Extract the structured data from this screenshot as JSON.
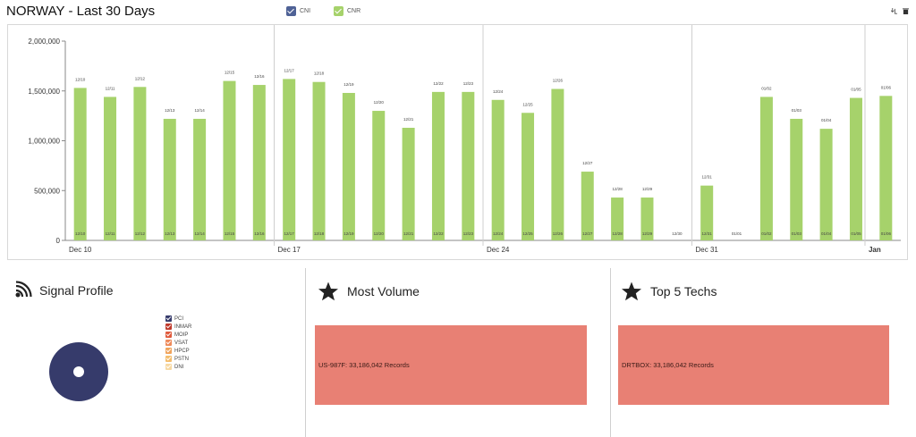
{
  "header": {
    "title": "NORWAY - Last 30 Days",
    "legend": [
      {
        "label": "CNI",
        "color": "#4f6296"
      },
      {
        "label": "CNR",
        "color": "#a6d26b"
      }
    ]
  },
  "chart_data": {
    "type": "bar",
    "title": "",
    "xlabel": "",
    "ylabel": "",
    "ylim": [
      0,
      2000000
    ],
    "y_ticks": [
      "0",
      "500,000",
      "1,000,000",
      "1,500,000",
      "2,000,000"
    ],
    "y_tick_values": [
      0,
      500000,
      1000000,
      1500000,
      2000000
    ],
    "x_week_labels": [
      "Dec 10",
      "Dec 17",
      "Dec 24",
      "Dec 31",
      "Jan"
    ],
    "grid": "vertical week lines",
    "series": [
      {
        "name": "CNR",
        "color": "#a6d26b",
        "categories": [
          "12/10",
          "12/11",
          "12/12",
          "12/13",
          "12/14",
          "12/15",
          "12/16",
          "12/17",
          "12/18",
          "12/19",
          "12/20",
          "12/21",
          "12/22",
          "12/23",
          "12/24",
          "12/25",
          "12/26",
          "12/27",
          "12/28",
          "12/29",
          "12/30",
          "12/31",
          "01/01",
          "01/02",
          "01/03",
          "01/04",
          "01/05",
          "01/06"
        ],
        "values": [
          1530000,
          1440000,
          1540000,
          1220000,
          1220000,
          1600000,
          1560000,
          1620000,
          1590000,
          1480000,
          1300000,
          1130000,
          1490000,
          1490000,
          1410000,
          1280000,
          1520000,
          690000,
          430000,
          430000,
          0,
          550000,
          0,
          1440000,
          1220000,
          1120000,
          1430000,
          1450000
        ]
      }
    ]
  },
  "signal_profile": {
    "title": "Signal Profile",
    "legend": [
      {
        "label": "PCI",
        "color": "#363b6b"
      },
      {
        "label": "INMAR",
        "color": "#c0392b"
      },
      {
        "label": "MOIP",
        "color": "#e05a3c"
      },
      {
        "label": "VSAT",
        "color": "#ee8a5a"
      },
      {
        "label": "HPCP",
        "color": "#f0a35b"
      },
      {
        "label": "PSTN",
        "color": "#f4bd6d"
      },
      {
        "label": "DNI",
        "color": "#f7d9a3"
      }
    ],
    "donut_color": "#363b6b"
  },
  "most_volume": {
    "title": "Most Volume",
    "bar_label": "US-987F: 33,186,042 Records",
    "bar_color": "#e88074"
  },
  "top_techs": {
    "title": "Top 5 Techs",
    "bar_label": "DRTBOX: 33,186,042 Records",
    "bar_color": "#e88074"
  }
}
